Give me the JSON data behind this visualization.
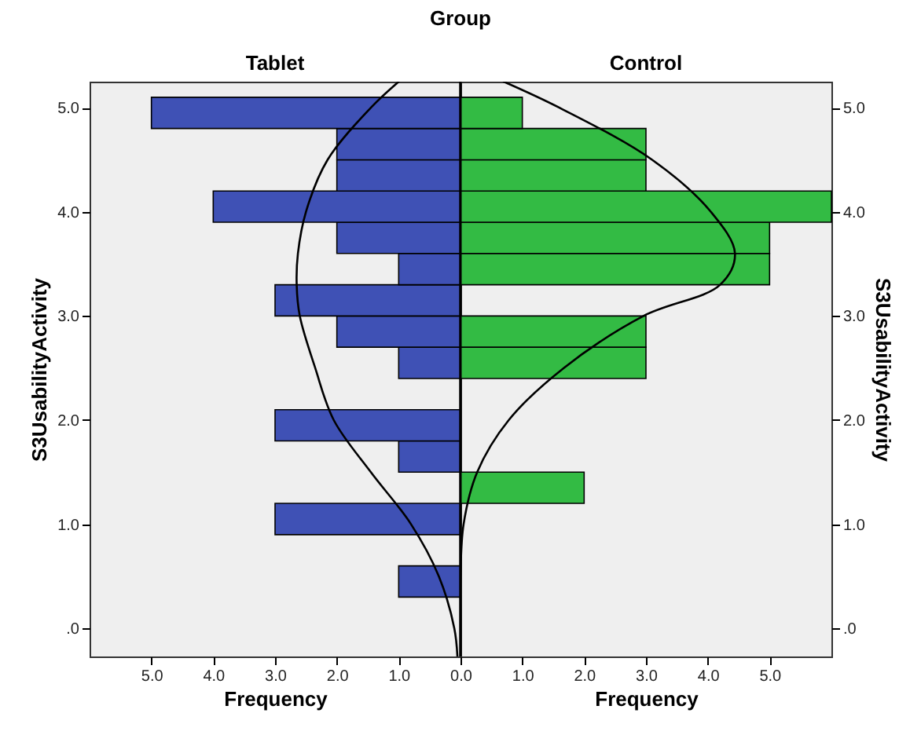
{
  "chart_data": [
    {
      "type": "histogram",
      "orientation": "horizontal",
      "annotations": [
        "Group"
      ],
      "title": "Tablet",
      "xlabel": "Frequency",
      "ylabel": "S3UsabilityActivity",
      "bins": [
        0.0,
        0.3,
        0.6,
        0.9,
        1.2,
        1.5,
        1.8,
        2.1,
        2.4,
        2.7,
        3.0,
        3.3,
        3.6,
        3.9,
        4.2,
        4.5,
        4.8,
        5.1
      ],
      "series": [
        {
          "color": "#3f51b5",
          "values": [
            0,
            1,
            0,
            3,
            0,
            1,
            3,
            0,
            1,
            2,
            3,
            1,
            2,
            4,
            2,
            2,
            5
          ]
        },
        {
          "type": "line",
          "color": "#000000",
          "x": [
            -0.27,
            0.0,
            0.5,
            1.0,
            1.5,
            2.0,
            2.5,
            3.0,
            3.3,
            3.6,
            4.0,
            4.5,
            5.0,
            5.25
          ],
          "values": [
            0.05,
            0.1,
            0.35,
            0.8,
            1.45,
            2.05,
            2.35,
            2.6,
            2.65,
            2.63,
            2.5,
            2.15,
            1.45,
            1.0
          ]
        }
      ],
      "xlim": [
        6,
        0
      ],
      "xticks": [
        {
          "value": 5,
          "label": "5.0"
        },
        {
          "value": 4,
          "label": "4.0"
        },
        {
          "value": 3,
          "label": "3.0"
        },
        {
          "value": 2,
          "label": "2.0"
        },
        {
          "value": 1,
          "label": "1.0"
        },
        {
          "value": 0,
          "label": null
        }
      ],
      "ylim": [
        -0.27,
        5.25
      ],
      "yticks": [
        {
          "value": 0,
          "label": ".0"
        },
        {
          "value": 1,
          "label": "1.0"
        },
        {
          "value": 2,
          "label": "2.0"
        },
        {
          "value": 3,
          "label": "3.0"
        },
        {
          "value": 4,
          "label": "4.0"
        },
        {
          "value": 5,
          "label": "5.0"
        }
      ]
    },
    {
      "type": "histogram",
      "orientation": "horizontal",
      "title": "Control",
      "xlabel": "Frequency",
      "ylabel": "S3UsabilityActivity",
      "bins": [
        0.0,
        0.3,
        0.6,
        0.9,
        1.2,
        1.5,
        1.8,
        2.1,
        2.4,
        2.7,
        3.0,
        3.3,
        3.6,
        3.9,
        4.2,
        4.5,
        4.8,
        5.1
      ],
      "series": [
        {
          "color": "#33bb44",
          "values": [
            0,
            0,
            0,
            0,
            2,
            0,
            0,
            0,
            3,
            3,
            0,
            5,
            5,
            6,
            3,
            3,
            1
          ]
        },
        {
          "type": "line",
          "color": "#000000",
          "x": [
            -0.27,
            0.0,
            0.5,
            1.0,
            1.5,
            2.0,
            2.5,
            3.0,
            3.3,
            3.6,
            4.0,
            4.5,
            5.0,
            5.25
          ],
          "values": [
            0,
            0,
            0,
            0.05,
            0.27,
            0.78,
            1.67,
            2.96,
            4.2,
            4.44,
            4.05,
            3.1,
            1.6,
            0.7
          ]
        }
      ],
      "xlim": [
        0,
        6
      ],
      "xticks": [
        {
          "value": 0,
          "label": "0.0"
        },
        {
          "value": 1,
          "label": "1.0"
        },
        {
          "value": 2,
          "label": "2.0"
        },
        {
          "value": 3,
          "label": "3.0"
        },
        {
          "value": 4,
          "label": "4.0"
        },
        {
          "value": 5,
          "label": "5.0"
        }
      ],
      "ylim": [
        -0.27,
        5.25
      ],
      "yticks": [
        {
          "value": 0,
          "label": ".0"
        },
        {
          "value": 1,
          "label": "1.0"
        },
        {
          "value": 2,
          "label": "2.0"
        },
        {
          "value": 3,
          "label": "3.0"
        },
        {
          "value": 4,
          "label": "4.0"
        },
        {
          "value": 5,
          "label": "5.0"
        }
      ]
    }
  ]
}
